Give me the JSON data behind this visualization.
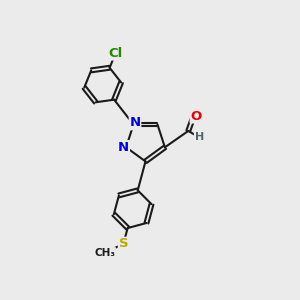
{
  "background_color": "#ebebeb",
  "bond_color": "#1a1a1a",
  "bond_width": 1.5,
  "atom_colors": {
    "N": "#0000ee",
    "O": "#ee0000",
    "Cl": "#228800",
    "S": "#bbaa00",
    "H": "#556666",
    "C": "#1a1a1a"
  },
  "font_size_atom": 9.5,
  "font_size_small": 8.0,
  "xlim": [
    0,
    10
  ],
  "ylim": [
    0,
    10
  ]
}
